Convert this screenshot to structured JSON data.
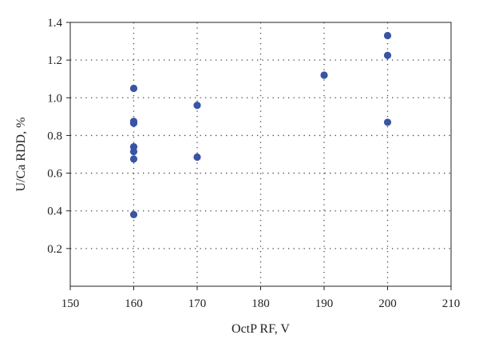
{
  "chart_data": {
    "type": "scatter",
    "title": "",
    "xlabel": "OctP RF, V",
    "ylabel": "U/Ca RDD, %",
    "xlim": [
      150,
      210
    ],
    "ylim": [
      0,
      1.4
    ],
    "xticks": [
      150,
      160,
      170,
      180,
      190,
      200,
      210
    ],
    "yticks": [
      0.2,
      0.4,
      0.6,
      0.8,
      1.0,
      1.2,
      1.4
    ],
    "xtick_labels": [
      "150",
      "160",
      "170",
      "180",
      "190",
      "200",
      "210"
    ],
    "ytick_labels": [
      "0.2",
      "0.4",
      "0.6",
      "0.8",
      "1.0",
      "1.2",
      "1.4"
    ],
    "grid": "dotted",
    "marker_color": "#3a54a4",
    "series": [
      {
        "points": [
          {
            "x": 160,
            "y": 1.05
          },
          {
            "x": 160,
            "y": 0.875
          },
          {
            "x": 160,
            "y": 0.865
          },
          {
            "x": 160,
            "y": 0.74
          },
          {
            "x": 160,
            "y": 0.715
          },
          {
            "x": 160,
            "y": 0.675
          },
          {
            "x": 160,
            "y": 0.38
          },
          {
            "x": 170,
            "y": 0.96
          },
          {
            "x": 170,
            "y": 0.685
          },
          {
            "x": 190,
            "y": 1.12
          },
          {
            "x": 200,
            "y": 1.33
          },
          {
            "x": 200,
            "y": 1.225
          },
          {
            "x": 200,
            "y": 0.87
          }
        ]
      }
    ]
  }
}
